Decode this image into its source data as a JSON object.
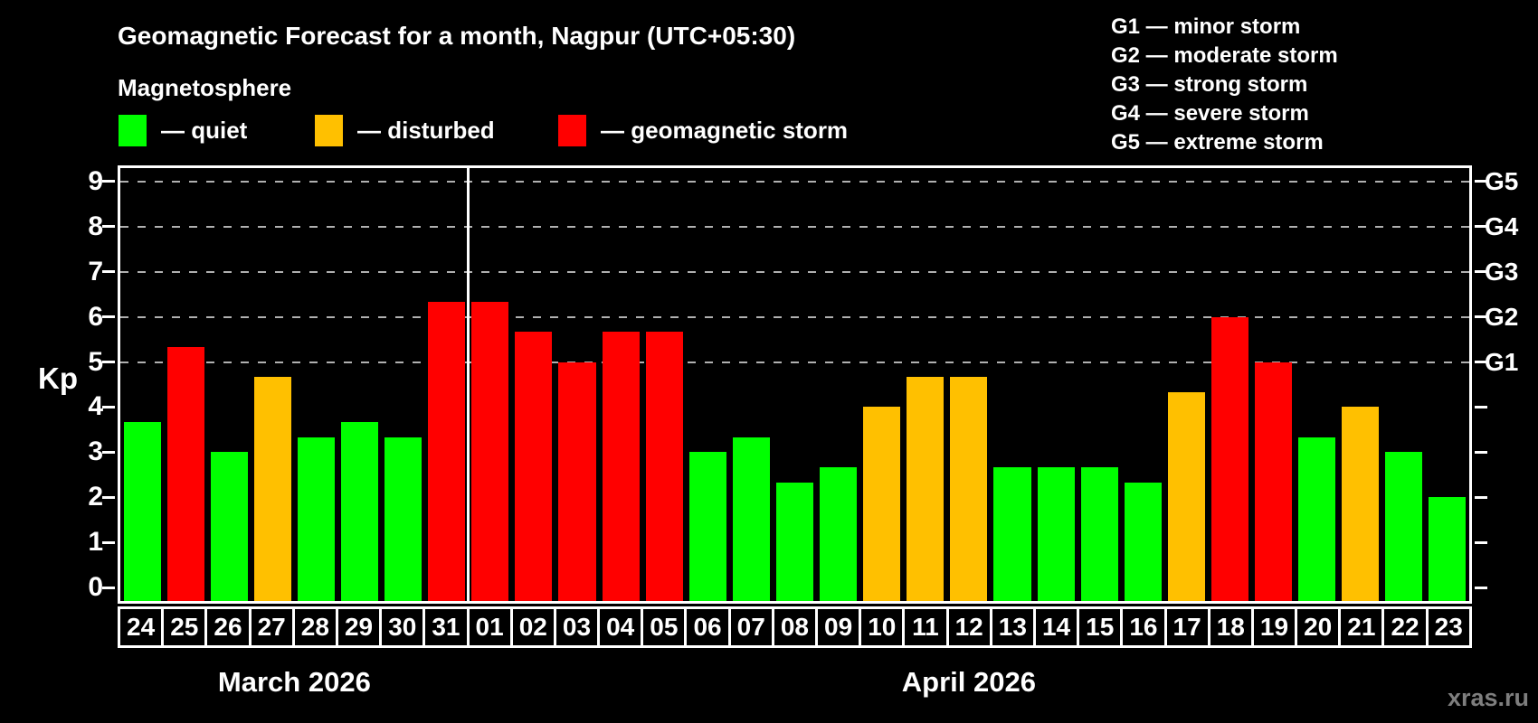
{
  "header": {
    "title": "Geomagnetic Forecast for a month, Nagpur (UTC+05:30)",
    "subtitle": "Magnetosphere",
    "legend": [
      {
        "status": "quiet",
        "label": "— quiet"
      },
      {
        "status": "disturbed",
        "label": "— disturbed"
      },
      {
        "status": "storm",
        "label": "— geomagnetic storm"
      }
    ],
    "g_scale_legend": [
      "G1 — minor storm",
      "G2 — moderate storm",
      "G3 — strong storm",
      "G4 — severe storm",
      "G5 — extreme storm"
    ]
  },
  "colors": {
    "quiet": "#00ff00",
    "disturbed": "#ffc000",
    "storm": "#ff0000",
    "grid": "#b0b0b0",
    "axis": "#ffffff",
    "watermark": "#7e7e7e"
  },
  "chart_data": {
    "type": "bar",
    "title": "Geomagnetic Forecast for a month, Nagpur (UTC+05:30)",
    "ylabel": "Kp",
    "ylim": [
      0,
      9.35
    ],
    "yticks": [
      0,
      1,
      2,
      3,
      4,
      5,
      6,
      7,
      8,
      9
    ],
    "gridlines_at": [
      5,
      6,
      7,
      8,
      9
    ],
    "grid": "dashed horizontal at G-storm levels only",
    "legend_position": "top",
    "right_axis_labels": [
      {
        "kp": 5,
        "label": "G1"
      },
      {
        "kp": 6,
        "label": "G2"
      },
      {
        "kp": 7,
        "label": "G3"
      },
      {
        "kp": 8,
        "label": "G4"
      },
      {
        "kp": 9,
        "label": "G5"
      }
    ],
    "months": [
      {
        "label": "March 2026",
        "days": 8
      },
      {
        "label": "April 2026",
        "days": 23
      }
    ],
    "categories": [
      "24",
      "25",
      "26",
      "27",
      "28",
      "29",
      "30",
      "31",
      "01",
      "02",
      "03",
      "04",
      "05",
      "06",
      "07",
      "08",
      "09",
      "10",
      "11",
      "12",
      "13",
      "14",
      "15",
      "16",
      "17",
      "18",
      "19",
      "20",
      "21",
      "22",
      "23"
    ],
    "values": [
      3.67,
      5.33,
      3.0,
      4.67,
      3.33,
      3.67,
      3.33,
      6.33,
      6.33,
      5.67,
      5.0,
      5.67,
      5.67,
      3.0,
      3.33,
      2.33,
      2.67,
      4.0,
      4.67,
      4.67,
      2.67,
      2.67,
      2.67,
      2.33,
      4.33,
      6.0,
      5.0,
      3.33,
      4.0,
      3.0,
      2.0
    ],
    "statuses": [
      "quiet",
      "storm",
      "quiet",
      "disturbed",
      "quiet",
      "quiet",
      "quiet",
      "storm",
      "storm",
      "storm",
      "storm",
      "storm",
      "storm",
      "quiet",
      "quiet",
      "quiet",
      "quiet",
      "disturbed",
      "disturbed",
      "disturbed",
      "quiet",
      "quiet",
      "quiet",
      "quiet",
      "disturbed",
      "storm",
      "storm",
      "quiet",
      "disturbed",
      "quiet",
      "quiet"
    ]
  },
  "watermark": "xras.ru"
}
